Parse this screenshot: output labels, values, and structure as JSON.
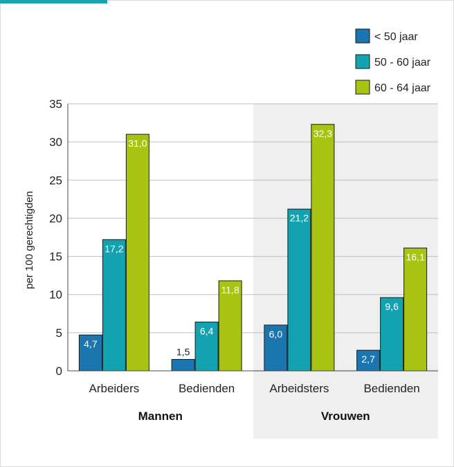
{
  "chart_data": {
    "type": "bar",
    "ylabel": "per 100 gerechtigden",
    "ylim": [
      0,
      35
    ],
    "yticks": [
      "0",
      "5",
      "10",
      "15",
      "20",
      "25",
      "30",
      "35"
    ],
    "grid": true,
    "legend_position": "top-right",
    "groups": [
      {
        "label": "Mannen",
        "categories": [
          "Arbeiders",
          "Bedienden"
        ],
        "shaded": false
      },
      {
        "label": "Vrouwen",
        "categories": [
          "Arbeidsters",
          "Bedienden"
        ],
        "shaded": true
      }
    ],
    "categories": [
      "Arbeiders",
      "Bedienden",
      "Arbeidsters",
      "Bedienden"
    ],
    "series": [
      {
        "name": "< 50 jaar",
        "color": "#1b75ae",
        "values": [
          4.7,
          1.5,
          6.0,
          2.7
        ],
        "labels": [
          "4,7",
          "1,5",
          "6,0",
          "2,7"
        ]
      },
      {
        "name": "50 - 60 jaar",
        "color": "#13a3b0",
        "values": [
          17.2,
          6.4,
          21.2,
          9.6
        ],
        "labels": [
          "17,2",
          "6,4",
          "21,2",
          "9,6"
        ]
      },
      {
        "name": "60 - 64 jaar",
        "color": "#a8c312",
        "values": [
          31.0,
          11.8,
          32.3,
          16.1
        ],
        "labels": [
          "31,0",
          "11,8",
          "32,3",
          "16,1"
        ]
      }
    ]
  }
}
